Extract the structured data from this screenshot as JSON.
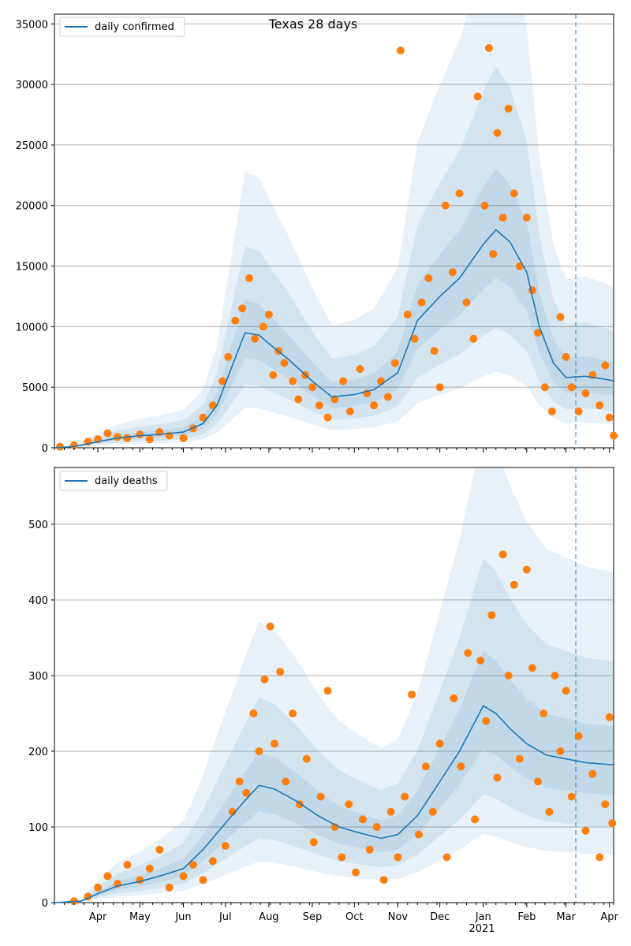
{
  "chart_data": [
    {
      "type": "line",
      "title": "Texas 28 days",
      "xlabel": "",
      "ylabel": "",
      "ylim": [
        0,
        35800
      ],
      "y_ticks": [
        "0",
        "5000",
        "10000",
        "15000",
        "20000",
        "25000",
        "30000",
        "35000"
      ],
      "y_tick_values": [
        0,
        5000,
        10000,
        15000,
        20000,
        25000,
        30000,
        35000
      ],
      "x_tick_labels": [],
      "legend": {
        "placement": "top-left",
        "entries": [
          "daily confirmed"
        ]
      },
      "grid": "horizontal",
      "colors": {
        "line": "#1f77b4",
        "points": "#ff7f0e",
        "band": "#1f77b4"
      },
      "vline_date": "2021-03-08",
      "series": [
        {
          "name": "daily confirmed",
          "anchors": [
            [
              "2020-03-01",
              0
            ],
            [
              "2020-03-15",
              100
            ],
            [
              "2020-04-01",
              500
            ],
            [
              "2020-04-15",
              800
            ],
            [
              "2020-05-01",
              1000
            ],
            [
              "2020-05-15",
              1100
            ],
            [
              "2020-06-01",
              1300
            ],
            [
              "2020-06-15",
              2000
            ],
            [
              "2020-06-25",
              3500
            ],
            [
              "2020-07-05",
              6500
            ],
            [
              "2020-07-15",
              9500
            ],
            [
              "2020-07-25",
              9300
            ],
            [
              "2020-08-01",
              8600
            ],
            [
              "2020-08-15",
              7300
            ],
            [
              "2020-09-01",
              5500
            ],
            [
              "2020-09-15",
              4200
            ],
            [
              "2020-10-01",
              4400
            ],
            [
              "2020-10-15",
              4800
            ],
            [
              "2020-11-01",
              6200
            ],
            [
              "2020-11-15",
              10500
            ],
            [
              "2020-12-01",
              12500
            ],
            [
              "2020-12-15",
              14000
            ],
            [
              "2021-01-01",
              16800
            ],
            [
              "2021-01-10",
              18000
            ],
            [
              "2021-01-20",
              17000
            ],
            [
              "2021-02-01",
              14500
            ],
            [
              "2021-02-10",
              10000
            ],
            [
              "2021-02-20",
              7000
            ],
            [
              "2021-03-01",
              5800
            ],
            [
              "2021-03-15",
              5900
            ],
            [
              "2021-04-01",
              5600
            ],
            [
              "2021-04-04",
              5500
            ]
          ],
          "band_width": 0.3
        }
      ],
      "points": [
        [
          "2020-03-05",
          80
        ],
        [
          "2020-03-15",
          200
        ],
        [
          "2020-03-25",
          500
        ],
        [
          "2020-04-01",
          700
        ],
        [
          "2020-04-08",
          1200
        ],
        [
          "2020-04-15",
          900
        ],
        [
          "2020-04-22",
          800
        ],
        [
          "2020-05-01",
          1100
        ],
        [
          "2020-05-08",
          700
        ],
        [
          "2020-05-15",
          1300
        ],
        [
          "2020-05-22",
          1000
        ],
        [
          "2020-06-01",
          800
        ],
        [
          "2020-06-08",
          1600
        ],
        [
          "2020-06-15",
          2500
        ],
        [
          "2020-06-22",
          3500
        ],
        [
          "2020-06-29",
          5500
        ],
        [
          "2020-07-03",
          7500
        ],
        [
          "2020-07-08",
          10500
        ],
        [
          "2020-07-13",
          11500
        ],
        [
          "2020-07-18",
          14000
        ],
        [
          "2020-07-22",
          9000
        ],
        [
          "2020-07-28",
          10000
        ],
        [
          "2020-08-01",
          11000
        ],
        [
          "2020-08-04",
          6000
        ],
        [
          "2020-08-08",
          8000
        ],
        [
          "2020-08-12",
          7000
        ],
        [
          "2020-08-18",
          5500
        ],
        [
          "2020-08-22",
          4000
        ],
        [
          "2020-08-27",
          6000
        ],
        [
          "2020-09-01",
          5000
        ],
        [
          "2020-09-06",
          3500
        ],
        [
          "2020-09-12",
          2500
        ],
        [
          "2020-09-17",
          4000
        ],
        [
          "2020-09-23",
          5500
        ],
        [
          "2020-09-28",
          3000
        ],
        [
          "2020-10-05",
          6500
        ],
        [
          "2020-10-10",
          4500
        ],
        [
          "2020-10-15",
          3500
        ],
        [
          "2020-10-20",
          5500
        ],
        [
          "2020-10-25",
          4200
        ],
        [
          "2020-10-30",
          7000
        ],
        [
          "2020-11-03",
          32800
        ],
        [
          "2020-11-08",
          11000
        ],
        [
          "2020-11-13",
          9000
        ],
        [
          "2020-11-18",
          12000
        ],
        [
          "2020-11-23",
          14000
        ],
        [
          "2020-11-27",
          8000
        ],
        [
          "2020-12-01",
          5000
        ],
        [
          "2020-12-05",
          20000
        ],
        [
          "2020-12-10",
          14500
        ],
        [
          "2020-12-15",
          21000
        ],
        [
          "2020-12-20",
          12000
        ],
        [
          "2020-12-25",
          9000
        ],
        [
          "2020-12-28",
          29000
        ],
        [
          "2021-01-02",
          20000
        ],
        [
          "2021-01-05",
          33000
        ],
        [
          "2021-01-08",
          16000
        ],
        [
          "2021-01-11",
          26000
        ],
        [
          "2021-01-15",
          19000
        ],
        [
          "2021-01-19",
          28000
        ],
        [
          "2021-01-23",
          21000
        ],
        [
          "2021-01-27",
          15000
        ],
        [
          "2021-02-01",
          19000
        ],
        [
          "2021-02-05",
          13000
        ],
        [
          "2021-02-09",
          9500
        ],
        [
          "2021-02-14",
          5000
        ],
        [
          "2021-02-19",
          3000
        ],
        [
          "2021-02-25",
          10800
        ],
        [
          "2021-03-01",
          7500
        ],
        [
          "2021-03-05",
          5000
        ],
        [
          "2021-03-10",
          3000
        ],
        [
          "2021-03-15",
          4500
        ],
        [
          "2021-03-20",
          6000
        ],
        [
          "2021-03-25",
          3500
        ],
        [
          "2021-03-29",
          6800
        ],
        [
          "2021-04-01",
          2500
        ],
        [
          "2021-04-04",
          1000
        ]
      ]
    },
    {
      "type": "line",
      "title": "",
      "xlabel": "",
      "ylabel": "",
      "ylim": [
        0,
        575
      ],
      "y_ticks": [
        "0",
        "100",
        "200",
        "300",
        "400",
        "500"
      ],
      "y_tick_values": [
        0,
        100,
        200,
        300,
        400,
        500
      ],
      "x_tick_labels": [
        "Apr",
        "May",
        "Jun",
        "Jul",
        "Aug",
        "Sep",
        "Oct",
        "Nov",
        "Dec",
        "Jan",
        "Feb",
        "Mar",
        "Apr"
      ],
      "x_tick_dates": [
        "2020-04-01",
        "2020-05-01",
        "2020-06-01",
        "2020-07-01",
        "2020-08-01",
        "2020-09-01",
        "2020-10-01",
        "2020-11-01",
        "2020-12-01",
        "2021-01-01",
        "2021-02-01",
        "2021-03-01",
        "2021-04-01"
      ],
      "year_label": "2021",
      "legend": {
        "placement": "top-left",
        "entries": [
          "daily deaths"
        ]
      },
      "grid": "horizontal",
      "colors": {
        "line": "#1f77b4",
        "points": "#ff7f0e",
        "band": "#1f77b4"
      },
      "vline_date": "2021-03-08",
      "series": [
        {
          "name": "daily deaths",
          "anchors": [
            [
              "2020-03-01",
              0
            ],
            [
              "2020-03-20",
              2
            ],
            [
              "2020-04-01",
              12
            ],
            [
              "2020-04-15",
              22
            ],
            [
              "2020-05-01",
              28
            ],
            [
              "2020-05-15",
              35
            ],
            [
              "2020-06-01",
              45
            ],
            [
              "2020-06-15",
              70
            ],
            [
              "2020-07-01",
              105
            ],
            [
              "2020-07-15",
              135
            ],
            [
              "2020-07-25",
              155
            ],
            [
              "2020-08-05",
              150
            ],
            [
              "2020-08-20",
              135
            ],
            [
              "2020-09-05",
              115
            ],
            [
              "2020-09-20",
              100
            ],
            [
              "2020-10-05",
              92
            ],
            [
              "2020-10-20",
              85
            ],
            [
              "2020-11-01",
              90
            ],
            [
              "2020-11-15",
              115
            ],
            [
              "2020-12-01",
              160
            ],
            [
              "2020-12-15",
              200
            ],
            [
              "2021-01-01",
              260
            ],
            [
              "2021-01-10",
              250
            ],
            [
              "2021-01-20",
              230
            ],
            [
              "2021-02-01",
              210
            ],
            [
              "2021-02-15",
              195
            ],
            [
              "2021-03-01",
              190
            ],
            [
              "2021-03-15",
              185
            ],
            [
              "2021-04-04",
              182
            ]
          ],
          "band_width": 0.35
        }
      ],
      "points": [
        [
          "2020-03-15",
          2
        ],
        [
          "2020-03-25",
          8
        ],
        [
          "2020-04-01",
          20
        ],
        [
          "2020-04-08",
          35
        ],
        [
          "2020-04-15",
          25
        ],
        [
          "2020-04-22",
          50
        ],
        [
          "2020-05-01",
          30
        ],
        [
          "2020-05-08",
          45
        ],
        [
          "2020-05-15",
          70
        ],
        [
          "2020-05-22",
          20
        ],
        [
          "2020-06-01",
          35
        ],
        [
          "2020-06-08",
          50
        ],
        [
          "2020-06-15",
          30
        ],
        [
          "2020-06-22",
          55
        ],
        [
          "2020-07-01",
          75
        ],
        [
          "2020-07-06",
          120
        ],
        [
          "2020-07-11",
          160
        ],
        [
          "2020-07-16",
          145
        ],
        [
          "2020-07-21",
          250
        ],
        [
          "2020-07-25",
          200
        ],
        [
          "2020-07-29",
          295
        ],
        [
          "2020-08-02",
          365
        ],
        [
          "2020-08-05",
          210
        ],
        [
          "2020-08-09",
          305
        ],
        [
          "2020-08-13",
          160
        ],
        [
          "2020-08-18",
          250
        ],
        [
          "2020-08-23",
          130
        ],
        [
          "2020-08-28",
          190
        ],
        [
          "2020-09-02",
          80
        ],
        [
          "2020-09-07",
          140
        ],
        [
          "2020-09-12",
          280
        ],
        [
          "2020-09-17",
          100
        ],
        [
          "2020-09-22",
          60
        ],
        [
          "2020-09-27",
          130
        ],
        [
          "2020-10-02",
          40
        ],
        [
          "2020-10-07",
          110
        ],
        [
          "2020-10-12",
          70
        ],
        [
          "2020-10-17",
          100
        ],
        [
          "2020-10-22",
          30
        ],
        [
          "2020-10-27",
          120
        ],
        [
          "2020-11-01",
          60
        ],
        [
          "2020-11-06",
          140
        ],
        [
          "2020-11-11",
          275
        ],
        [
          "2020-11-16",
          90
        ],
        [
          "2020-11-21",
          180
        ],
        [
          "2020-11-26",
          120
        ],
        [
          "2020-12-01",
          210
        ],
        [
          "2020-12-06",
          60
        ],
        [
          "2020-12-11",
          270
        ],
        [
          "2020-12-16",
          180
        ],
        [
          "2020-12-21",
          330
        ],
        [
          "2020-12-26",
          110
        ],
        [
          "2020-12-30",
          320
        ],
        [
          "2021-01-03",
          240
        ],
        [
          "2021-01-07",
          380
        ],
        [
          "2021-01-11",
          165
        ],
        [
          "2021-01-15",
          460
        ],
        [
          "2021-01-19",
          300
        ],
        [
          "2021-01-23",
          420
        ],
        [
          "2021-01-27",
          190
        ],
        [
          "2021-02-01",
          440
        ],
        [
          "2021-02-05",
          310
        ],
        [
          "2021-02-09",
          160
        ],
        [
          "2021-02-13",
          250
        ],
        [
          "2021-02-17",
          120
        ],
        [
          "2021-02-21",
          300
        ],
        [
          "2021-02-25",
          200
        ],
        [
          "2021-03-01",
          280
        ],
        [
          "2021-03-05",
          140
        ],
        [
          "2021-03-10",
          220
        ],
        [
          "2021-03-15",
          95
        ],
        [
          "2021-03-20",
          170
        ],
        [
          "2021-03-25",
          60
        ],
        [
          "2021-03-29",
          130
        ],
        [
          "2021-04-01",
          245
        ],
        [
          "2021-04-03",
          105
        ]
      ]
    }
  ]
}
